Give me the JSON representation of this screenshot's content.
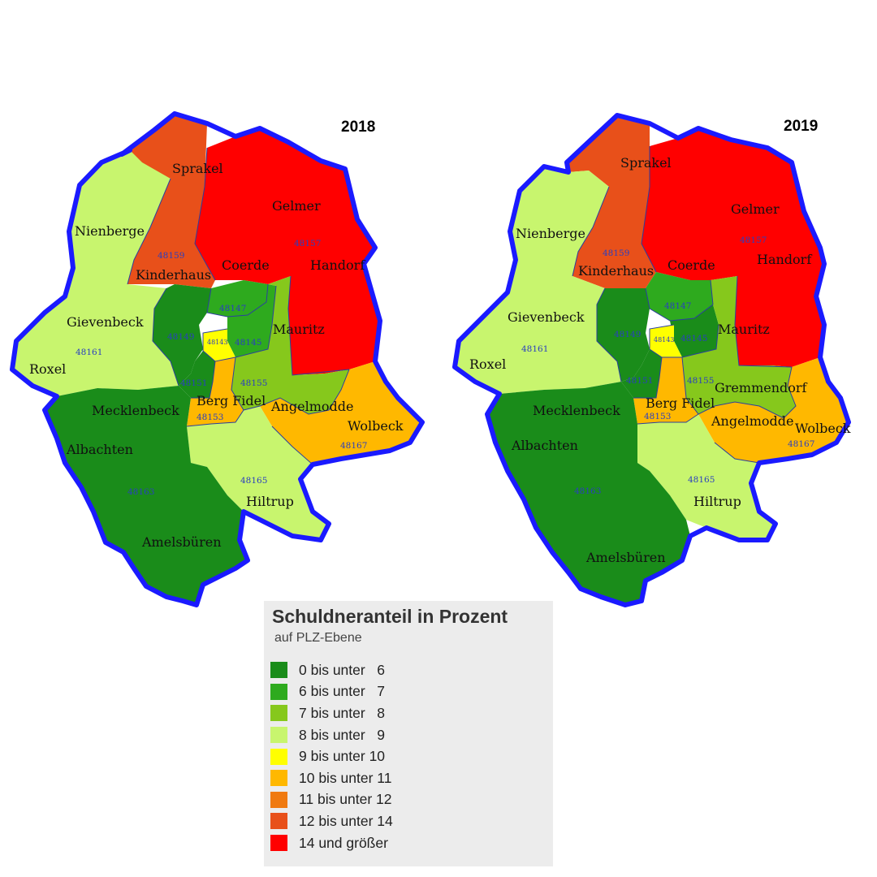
{
  "legend": {
    "title": "Schuldneranteil in Prozent",
    "subtitle": "auf PLZ-Ebene",
    "items": [
      {
        "label": "0 bis unter   6",
        "color": "#1a8c1a"
      },
      {
        "label": "6 bis unter   7",
        "color": "#2eaa1e"
      },
      {
        "label": "7 bis unter   8",
        "color": "#86c81c"
      },
      {
        "label": "8 bis unter   9",
        "color": "#c8f56e"
      },
      {
        "label": "9 bis unter 10",
        "color": "#ffff00"
      },
      {
        "label": "10 bis unter 11",
        "color": "#ffb800"
      },
      {
        "label": "11 bis unter 12",
        "color": "#f07a10"
      },
      {
        "label": "12 bis unter 14",
        "color": "#e8501a"
      },
      {
        "label": "14 und größer",
        "color": "#ff0000"
      }
    ]
  },
  "maps": [
    {
      "year": "2018",
      "districts": {
        "sprakel": "Sprakel",
        "gelmer": "Gelmer",
        "nienberge": "Nienberge",
        "kinderhaus": "Kinderhaus",
        "coerde": "Coerde",
        "handorf": "Handorf",
        "gievenbeck": "Gievenbeck",
        "mauritz": "Mauritz",
        "roxel": "Roxel",
        "mecklenbeck": "Mecklenbeck",
        "berg_fidel": "Berg Fidel",
        "angelmodde": "Angelmodde",
        "wolbeck": "Wolbeck",
        "albachten": "Albachten",
        "hiltrup": "Hiltrup",
        "amelsbueren": "Amelsbüren"
      },
      "plz": {
        "p48159": "48159",
        "p48157": "48157",
        "p48147": "48147",
        "p48149": "48149",
        "p48143": "48143",
        "p48145": "48145",
        "p48161": "48161",
        "p48151": "48151",
        "p48155": "48155",
        "p48153": "48153",
        "p48167": "48167",
        "p48165": "48165",
        "p48163": "48163"
      }
    },
    {
      "year": "2019",
      "districts": {
        "sprakel": "Sprakel",
        "gelmer": "Gelmer",
        "nienberge": "Nienberge",
        "kinderhaus": "Kinderhaus",
        "coerde": "Coerde",
        "handorf": "Handorf",
        "gievenbeck": "Gievenbeck",
        "mauritz": "Mauritz",
        "roxel": "Roxel",
        "gremmendorf": "Gremmendorf",
        "mecklenbeck": "Mecklenbeck",
        "berg_fidel": "Berg Fidel",
        "angelmodde": "Angelmodde",
        "wolbeck": "Wolbeck",
        "albachten": "Albachten",
        "hiltrup": "Hiltrup",
        "amelsbueren": "Amelsbüren"
      },
      "plz": {
        "p48159": "48159",
        "p48157": "48157",
        "p48147": "48147",
        "p48149": "48149",
        "p48143": "48143",
        "p48145": "48145",
        "p48161": "48161",
        "p48151": "48151",
        "p48155": "48155",
        "p48153": "48153",
        "p48167": "48167",
        "p48165": "48165",
        "p48163": "48163"
      }
    }
  ],
  "colors": {
    "border": "#1a1aff",
    "green_dark": "#1a8c1a",
    "green": "#2eaa1e",
    "green_mid": "#86c81c",
    "green_light": "#c8f56e",
    "yellow": "#ffff00",
    "orange_light": "#ffb800",
    "orange_red": "#e8501a",
    "red": "#ff0000"
  }
}
